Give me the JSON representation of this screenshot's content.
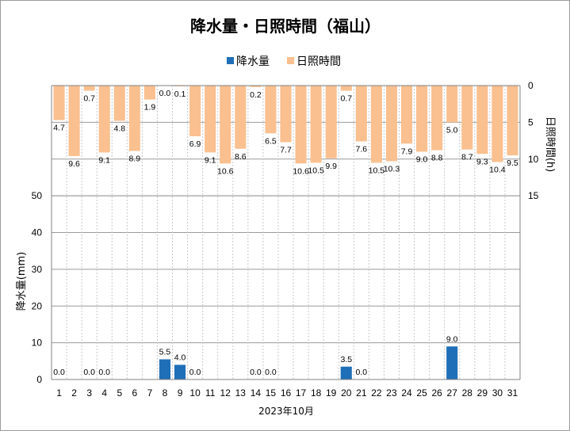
{
  "title": "降水量・日照時間（福山）",
  "legend": [
    {
      "name": "降水量",
      "color": "#1f6fb8"
    },
    {
      "name": "日照時間",
      "color": "#fac090"
    }
  ],
  "chart_data": {
    "type": "bar",
    "title": "降水量・日照時間（福山）",
    "xlabel": "2023年10月",
    "categories": [
      "1",
      "2",
      "3",
      "4",
      "5",
      "6",
      "7",
      "8",
      "9",
      "10",
      "11",
      "12",
      "13",
      "14",
      "15",
      "16",
      "17",
      "18",
      "19",
      "20",
      "21",
      "22",
      "23",
      "24",
      "25",
      "26",
      "27",
      "28",
      "29",
      "30",
      "31"
    ],
    "series": [
      {
        "name": "降水量",
        "axis": "left",
        "color": "#1f6fb8",
        "values": [
          0.0,
          null,
          0.0,
          0.0,
          null,
          null,
          null,
          5.5,
          4.0,
          0.0,
          null,
          null,
          null,
          0.0,
          0.0,
          null,
          null,
          null,
          null,
          3.5,
          0.0,
          null,
          null,
          null,
          null,
          null,
          9.0,
          null,
          null,
          null,
          null
        ],
        "labels": [
          "0.0",
          "",
          "0.0",
          "0.0",
          "",
          "",
          "",
          "5.5",
          "4.0",
          "0.0",
          "",
          "",
          "",
          "0.0",
          "0.0",
          "",
          "",
          "",
          "",
          "3.5",
          "0.0",
          "",
          "",
          "",
          "",
          "",
          "9.0",
          "",
          "",
          "",
          ""
        ]
      },
      {
        "name": "日照時間",
        "axis": "right",
        "color": "#fac090",
        "direction": "top-down",
        "values": [
          4.7,
          9.6,
          0.7,
          9.1,
          4.8,
          8.9,
          1.9,
          0.0,
          0.1,
          6.9,
          9.1,
          10.6,
          8.6,
          0.2,
          6.5,
          7.7,
          10.6,
          10.5,
          9.9,
          0.7,
          7.6,
          10.5,
          10.3,
          7.9,
          9.0,
          8.8,
          5.0,
          8.7,
          9.3,
          10.4,
          9.5
        ],
        "labels": [
          "4.7",
          "9.6",
          "0.7",
          "9.1",
          "4.8",
          "8.9",
          "1.9",
          "0.0",
          "0.1",
          "6.9",
          "9.1",
          "10.6",
          "8.6",
          "0.2",
          "6.5",
          "7.7",
          "10.6",
          "10.5",
          "9.9",
          "0.7",
          "7.6",
          "10.5",
          "10.3",
          "7.9",
          "9.0",
          "8.8",
          "5.0",
          "8.7",
          "9.3",
          "10.4",
          "9.5"
        ]
      }
    ],
    "y_left": {
      "label": "降水量(mm)",
      "range": [
        0,
        80
      ],
      "ticks": [
        0,
        10,
        20,
        30,
        40,
        50
      ],
      "tick_labels": [
        "0",
        "10",
        "20",
        "30",
        "40",
        "50"
      ]
    },
    "y_right": {
      "label": "日照時間(h)",
      "inverted": true,
      "range": [
        0,
        40
      ],
      "ticks": [
        0,
        5,
        10,
        15
      ],
      "tick_labels": [
        "0",
        "5",
        "10",
        "15"
      ]
    },
    "grid": {
      "horizontal": true,
      "vertical": "dashed"
    },
    "legend_position": "top"
  }
}
